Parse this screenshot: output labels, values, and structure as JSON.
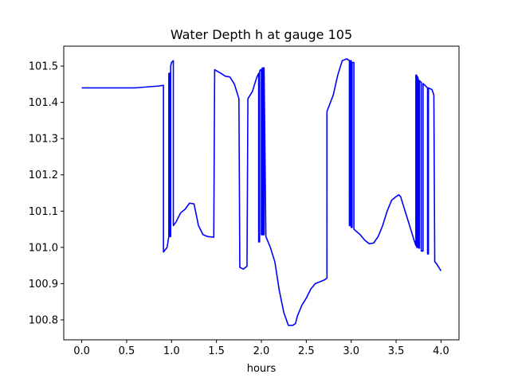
{
  "chart_data": {
    "type": "line",
    "title": "Water Depth h at gauge 105",
    "xlabel": "hours",
    "ylabel": "",
    "xlim": [
      -0.2,
      4.2
    ],
    "ylim": [
      100.745,
      101.555
    ],
    "xticks": [
      0.0,
      0.5,
      1.0,
      1.5,
      2.0,
      2.5,
      3.0,
      3.5,
      4.0
    ],
    "xtick_labels": [
      "0.0",
      "0.5",
      "1.0",
      "1.5",
      "2.0",
      "2.5",
      "3.0",
      "3.5",
      "4.0"
    ],
    "yticks": [
      100.8,
      100.9,
      101.0,
      101.1,
      101.2,
      101.3,
      101.4,
      101.5
    ],
    "ytick_labels": [
      "100.8",
      "100.9",
      "101.0",
      "101.1",
      "101.2",
      "101.3",
      "101.4",
      "101.5"
    ],
    "grid": false,
    "legend": "none",
    "series": [
      {
        "color": "#0000ff",
        "x": [
          0.0,
          0.3,
          0.6,
          0.85,
          0.91,
          0.91,
          0.95,
          0.97,
          0.97,
          0.98,
          0.98,
          0.99,
          0.99,
          1.0,
          1.02,
          1.02,
          1.05,
          1.1,
          1.15,
          1.2,
          1.25,
          1.3,
          1.35,
          1.4,
          1.47,
          1.48,
          1.55,
          1.6,
          1.65,
          1.7,
          1.75,
          1.76,
          1.8,
          1.84,
          1.85,
          1.9,
          1.95,
          1.97,
          1.97,
          1.98,
          1.98,
          1.99,
          2.0,
          2.0,
          2.01,
          2.01,
          2.02,
          2.02,
          2.03,
          2.03,
          2.05,
          2.1,
          2.15,
          2.2,
          2.25,
          2.3,
          2.35,
          2.38,
          2.4,
          2.45,
          2.5,
          2.55,
          2.6,
          2.7,
          2.73,
          2.73,
          2.8,
          2.85,
          2.9,
          2.95,
          2.98,
          2.98,
          2.99,
          2.99,
          3.0,
          3.0,
          3.01,
          3.01,
          3.03,
          3.03,
          3.1,
          3.15,
          3.2,
          3.25,
          3.3,
          3.35,
          3.4,
          3.45,
          3.5,
          3.53,
          3.55,
          3.6,
          3.65,
          3.7,
          3.72,
          3.72,
          3.73,
          3.73,
          3.74,
          3.74,
          3.75,
          3.75,
          3.76,
          3.76,
          3.78,
          3.78,
          3.8,
          3.8,
          3.85,
          3.85,
          3.86,
          3.86,
          3.9,
          3.92,
          3.93,
          3.95,
          4.0
        ],
        "y": [
          101.44,
          101.44,
          101.44,
          101.445,
          101.447,
          100.987,
          101.0,
          101.03,
          101.48,
          101.48,
          101.03,
          101.03,
          101.5,
          101.51,
          101.515,
          101.06,
          101.07,
          101.095,
          101.105,
          101.122,
          101.12,
          101.06,
          101.035,
          101.03,
          101.028,
          101.49,
          101.48,
          101.472,
          101.47,
          101.45,
          101.41,
          100.945,
          100.94,
          100.948,
          101.41,
          101.43,
          101.47,
          101.48,
          101.015,
          101.015,
          101.485,
          101.49,
          101.49,
          101.035,
          101.035,
          101.495,
          101.495,
          101.035,
          101.035,
          101.495,
          101.03,
          101.0,
          100.96,
          100.88,
          100.82,
          100.785,
          100.785,
          100.79,
          100.81,
          100.84,
          100.86,
          100.885,
          100.9,
          100.91,
          100.915,
          101.375,
          101.42,
          101.475,
          101.515,
          101.52,
          101.515,
          101.06,
          101.06,
          101.515,
          101.515,
          101.055,
          101.055,
          101.51,
          101.51,
          101.05,
          101.035,
          101.02,
          101.01,
          101.012,
          101.03,
          101.06,
          101.1,
          101.13,
          101.14,
          101.145,
          101.14,
          101.1,
          101.06,
          101.02,
          101.005,
          101.475,
          101.475,
          101.0,
          101.0,
          101.47,
          101.46,
          100.998,
          100.998,
          101.46,
          101.455,
          100.99,
          100.99,
          101.452,
          101.44,
          100.982,
          100.982,
          101.44,
          101.435,
          101.42,
          100.96,
          100.955,
          100.935
        ]
      }
    ]
  }
}
